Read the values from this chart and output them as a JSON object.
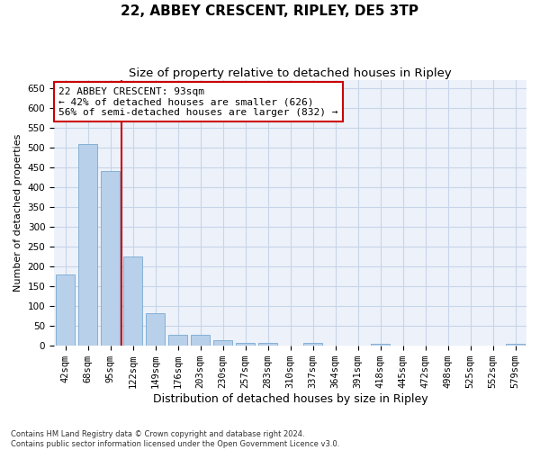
{
  "title": "22, ABBEY CRESCENT, RIPLEY, DE5 3TP",
  "subtitle": "Size of property relative to detached houses in Ripley",
  "xlabel": "Distribution of detached houses by size in Ripley",
  "ylabel": "Number of detached properties",
  "categories": [
    "42sqm",
    "68sqm",
    "95sqm",
    "122sqm",
    "149sqm",
    "176sqm",
    "203sqm",
    "230sqm",
    "257sqm",
    "283sqm",
    "310sqm",
    "337sqm",
    "364sqm",
    "391sqm",
    "418sqm",
    "445sqm",
    "472sqm",
    "498sqm",
    "525sqm",
    "552sqm",
    "579sqm"
  ],
  "values": [
    180,
    510,
    440,
    225,
    83,
    28,
    27,
    14,
    8,
    7,
    0,
    8,
    0,
    0,
    5,
    0,
    0,
    0,
    0,
    0,
    5
  ],
  "bar_color": "#b8d0ea",
  "bar_edge_color": "#7aa8d0",
  "vline_x_index": 2,
  "vline_color": "#cc0000",
  "annotation_text": "22 ABBEY CRESCENT: 93sqm\n← 42% of detached houses are smaller (626)\n56% of semi-detached houses are larger (832) →",
  "annotation_box_color": "white",
  "annotation_box_edge_color": "#cc0000",
  "ylim": [
    0,
    670
  ],
  "yticks": [
    0,
    50,
    100,
    150,
    200,
    250,
    300,
    350,
    400,
    450,
    500,
    550,
    600,
    650
  ],
  "grid_color": "#c8d4e8",
  "background_color": "#edf2fa",
  "footer": "Contains HM Land Registry data © Crown copyright and database right 2024.\nContains public sector information licensed under the Open Government Licence v3.0.",
  "title_fontsize": 11,
  "subtitle_fontsize": 9.5,
  "xlabel_fontsize": 9,
  "ylabel_fontsize": 8,
  "tick_fontsize": 7.5
}
